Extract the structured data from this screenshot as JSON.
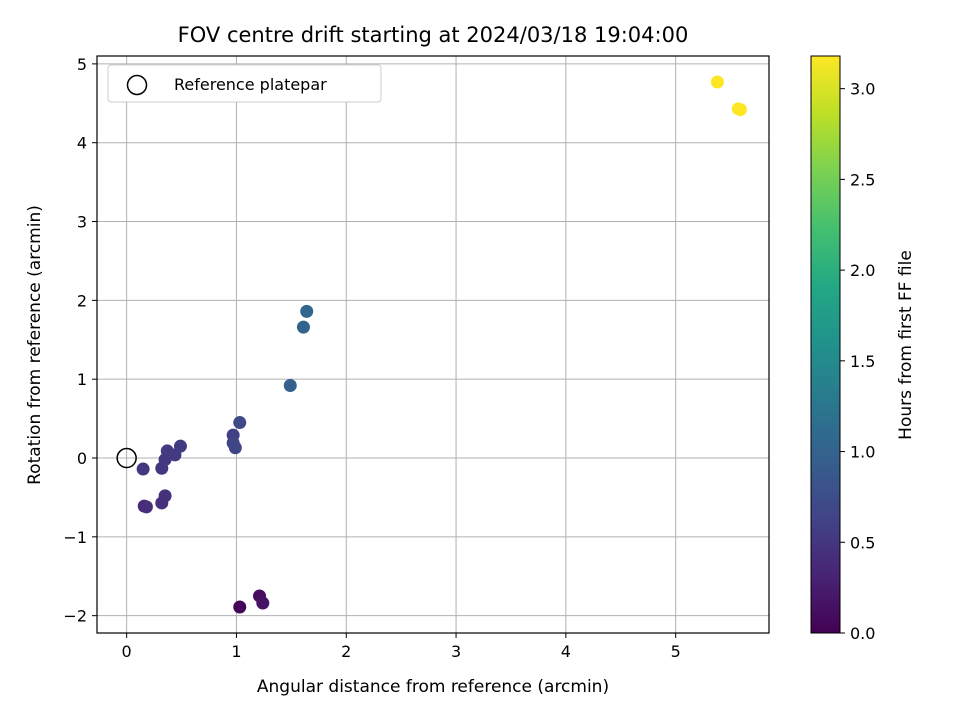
{
  "chart_data": {
    "type": "scatter",
    "title": "FOV centre drift starting at 2024/03/18 19:04:00",
    "xlabel": "Angular distance from reference (arcmin)",
    "ylabel": "Rotation from reference (arcmin)",
    "xlim": [
      -0.27,
      5.85
    ],
    "ylim": [
      -2.22,
      5.1
    ],
    "xticks": [
      0,
      1,
      2,
      3,
      4,
      5
    ],
    "xtick_labels": [
      "0",
      "1",
      "2",
      "3",
      "4",
      "5"
    ],
    "yticks": [
      -2,
      -1,
      0,
      1,
      2,
      3,
      4,
      5
    ],
    "ytick_labels": [
      "−2",
      "−1",
      "0",
      "1",
      "2",
      "3",
      "4",
      "5"
    ],
    "grid": true,
    "legend": {
      "position": "upper-left",
      "entries": [
        "Reference platepar"
      ]
    },
    "reference_point": {
      "x": 0,
      "y": 0
    },
    "colorbar": {
      "label": "Hours from first FF file",
      "colormap": "viridis",
      "range": [
        0.0,
        3.18
      ],
      "ticks": [
        0.0,
        0.5,
        1.0,
        1.5,
        2.0,
        2.5,
        3.0
      ],
      "tick_labels": [
        "0.0",
        "0.5",
        "1.0",
        "1.5",
        "2.0",
        "2.5",
        "3.0"
      ]
    },
    "points": [
      {
        "x": 1.03,
        "y": -1.89,
        "c": 0.05
      },
      {
        "x": 1.21,
        "y": -1.75,
        "c": 0.12
      },
      {
        "x": 1.24,
        "y": -1.84,
        "c": 0.15
      },
      {
        "x": 0.16,
        "y": -0.61,
        "c": 0.4
      },
      {
        "x": 0.18,
        "y": -0.62,
        "c": 0.42
      },
      {
        "x": 0.32,
        "y": -0.57,
        "c": 0.45
      },
      {
        "x": 0.35,
        "y": -0.48,
        "c": 0.45
      },
      {
        "x": 0.15,
        "y": -0.14,
        "c": 0.5
      },
      {
        "x": 0.32,
        "y": -0.13,
        "c": 0.5
      },
      {
        "x": 0.35,
        "y": -0.02,
        "c": 0.52
      },
      {
        "x": 0.37,
        "y": 0.09,
        "c": 0.55
      },
      {
        "x": 0.44,
        "y": 0.04,
        "c": 0.55
      },
      {
        "x": 0.49,
        "y": 0.15,
        "c": 0.55
      },
      {
        "x": 0.97,
        "y": 0.29,
        "c": 0.6
      },
      {
        "x": 0.99,
        "y": 0.13,
        "c": 0.65
      },
      {
        "x": 0.97,
        "y": 0.19,
        "c": 0.65
      },
      {
        "x": 1.03,
        "y": 0.45,
        "c": 0.7
      },
      {
        "x": 1.49,
        "y": 0.92,
        "c": 0.95
      },
      {
        "x": 1.61,
        "y": 1.66,
        "c": 1.0
      },
      {
        "x": 1.64,
        "y": 1.86,
        "c": 1.05
      },
      {
        "x": 5.38,
        "y": 4.77,
        "c": 3.18
      },
      {
        "x": 5.57,
        "y": 4.43,
        "c": 3.18
      },
      {
        "x": 5.59,
        "y": 4.42,
        "c": 3.18
      }
    ]
  }
}
